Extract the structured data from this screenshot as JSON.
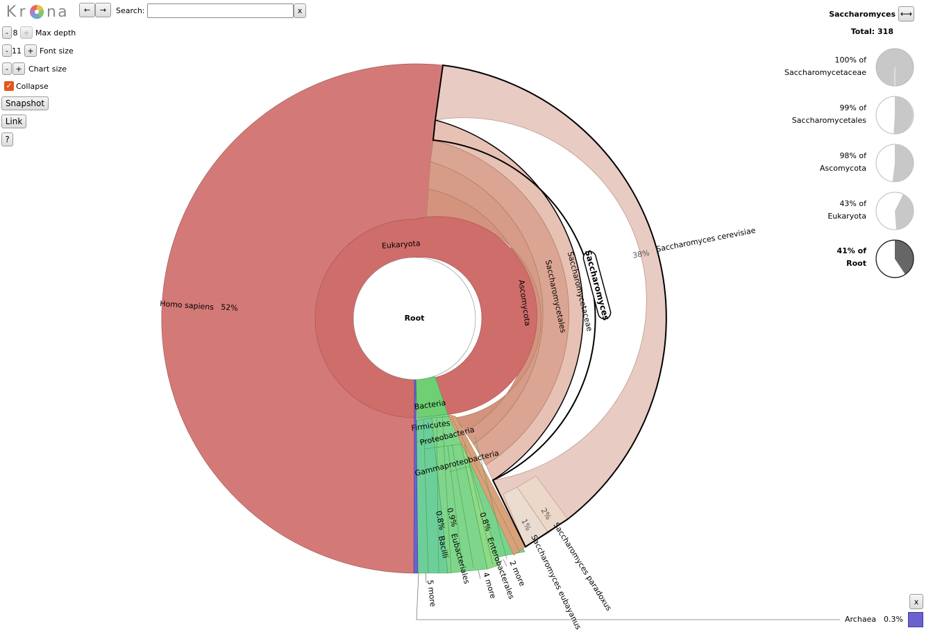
{
  "app": {
    "logo_letters": [
      "K",
      "r",
      "n",
      "a"
    ],
    "search_label": "Search:",
    "search_value": "",
    "search_clear": "x",
    "nav_back": "←",
    "nav_forward": "→"
  },
  "controls": {
    "max_depth": {
      "minus": "-",
      "value": "8",
      "plus": "+",
      "label": "Max depth"
    },
    "font_size": {
      "minus": "-",
      "value": "11",
      "plus": "+",
      "label": "Font size"
    },
    "chart_size": {
      "minus": "-",
      "plus": "+",
      "label": "Chart size"
    },
    "collapse": {
      "label": "Collapse",
      "checked": true
    },
    "snapshot_label": "Snapshot",
    "link_label": "Link",
    "help_label": "?"
  },
  "chart": {
    "center_label": "Root",
    "nodes": {
      "eukaryota": "Eukaryota",
      "bacteria": "Bacteria",
      "homo_sapiens": "Homo sapiens",
      "homo_pct": "52%",
      "ascomycota": "Ascomycota",
      "saccharomycetales": "Saccharomycetales",
      "saccharomycetaceae": "Saccharomycetaceae",
      "saccharomyces": "Saccharomyces",
      "cerevisiae": "Saccharomyces cerevisiae",
      "cerevisiae_pct": "38%",
      "paradoxus": "Saccharomyces paradoxus",
      "paradoxus_pct": "2%",
      "eubayanus": "Saccharomyces eubayanus",
      "eubayanus_pct": "1%",
      "firmicutes": "Firmicutes",
      "proteobacteria": "Proteobacteria",
      "gammaproteobacteria": "Gammaproteobacteria",
      "bacilli": "Bacilli",
      "bacilli_pct": "0.8%",
      "eubacteriales": "Eubacteriales",
      "eubacteriales_pct": "0.9%",
      "enterobacterales": "Enterobacterales",
      "enterobacterales_pct": "0.8%",
      "more_5": "5 more",
      "more_4": "4 more",
      "more_2": "2 more"
    },
    "colors": {
      "homo_sapiens": "#d37a78",
      "eukaryota": "#cf6d6b",
      "fungi_light": "#e8cbc2",
      "fungi_mid": "#dba593",
      "fungi_dark": "#d4937c",
      "bacteria": "#6ecf73",
      "archaea": "#6a62cd",
      "orange": "#d7a27a"
    }
  },
  "sidebar": {
    "title": "Saccharomyces",
    "expand_icon": "⟷",
    "total": "Total: 318",
    "ancestors": [
      {
        "pct": "100% of",
        "name": "Saccharomycetaceae",
        "fraction": 1.0,
        "bold": false
      },
      {
        "pct": "99% of",
        "name": "Saccharomycetales",
        "fraction": 0.99,
        "bold": false
      },
      {
        "pct": "98% of",
        "name": "Ascomycota",
        "fraction": 0.98,
        "bold": false
      },
      {
        "pct": "43% of",
        "name": "Eukaryota",
        "fraction": 0.43,
        "bold": false
      },
      {
        "pct": "41% of",
        "name": "Root",
        "fraction": 0.41,
        "bold": true
      }
    ]
  },
  "footer": {
    "close_label": "x",
    "archaea_label": "Archaea",
    "archaea_pct": "0.3%"
  }
}
